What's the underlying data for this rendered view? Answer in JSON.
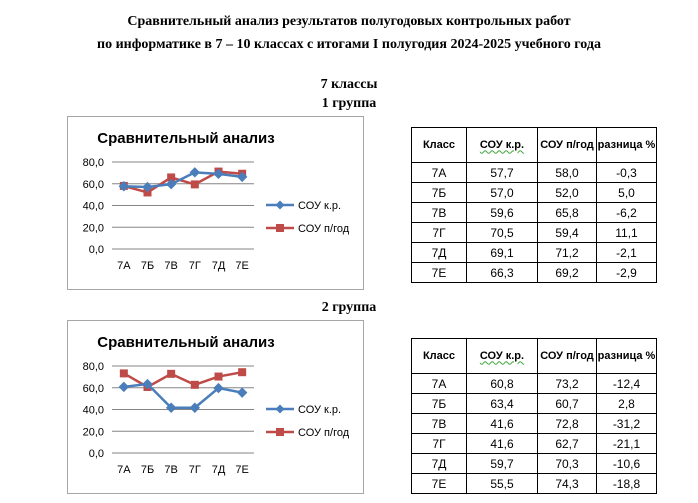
{
  "header": {
    "line1": "Сравнительный анализ результатов полугодовых контрольных работ",
    "line2": "по информатике в 7 – 10 классах с итогами I полугодия 2024-2025 учебного года"
  },
  "section": {
    "class_title": "7 классы",
    "group1_title": "1 группа",
    "group2_title": "2 группа"
  },
  "table_headers": {
    "klass": "Класс",
    "sou_kr": "СОУ к.р.",
    "sou_pg": "СОУ п/год",
    "diff": "разница %"
  },
  "chart_data": [
    {
      "type": "line",
      "title": "Сравнительный анализ",
      "categories": [
        "7А",
        "7Б",
        "7В",
        "7Г",
        "7Д",
        "7Е"
      ],
      "series": [
        {
          "name": "СОУ к.р.",
          "values": [
            57.7,
            57.0,
            59.6,
            70.5,
            69.1,
            66.3
          ],
          "color": "#4a7ebb",
          "marker": "diamond"
        },
        {
          "name": "СОУ п/год",
          "values": [
            58.0,
            52.0,
            65.8,
            59.4,
            71.2,
            69.2
          ],
          "color": "#be4b48",
          "marker": "square"
        }
      ],
      "ylim": [
        0,
        80
      ],
      "yticks": [
        "0,0",
        "20,0",
        "40,0",
        "60,0",
        "80,0"
      ],
      "grid": true,
      "legend": "right"
    },
    {
      "type": "line",
      "title": "Сравнительный анализ",
      "categories": [
        "7А",
        "7Б",
        "7В",
        "7Г",
        "7Д",
        "7Е"
      ],
      "series": [
        {
          "name": "СОУ к.р.",
          "values": [
            60.8,
            63.4,
            41.6,
            41.6,
            59.7,
            55.5
          ],
          "color": "#4a7ebb",
          "marker": "diamond"
        },
        {
          "name": "СОУ п/год",
          "values": [
            73.2,
            60.7,
            72.8,
            62.7,
            70.3,
            74.3
          ],
          "color": "#be4b48",
          "marker": "square"
        }
      ],
      "ylim": [
        0,
        80
      ],
      "yticks": [
        "0,0",
        "20,0",
        "40,0",
        "60,0",
        "80,0"
      ],
      "grid": true,
      "legend": "right"
    }
  ],
  "table1": [
    [
      "7А",
      "57,7",
      "58,0",
      "-0,3"
    ],
    [
      "7Б",
      "57,0",
      "52,0",
      "5,0"
    ],
    [
      "7В",
      "59,6",
      "65,8",
      "-6,2"
    ],
    [
      "7Г",
      "70,5",
      "59,4",
      "11,1"
    ],
    [
      "7Д",
      "69,1",
      "71,2",
      "-2,1"
    ],
    [
      "7Е",
      "66,3",
      "69,2",
      "-2,9"
    ]
  ],
  "table2": [
    [
      "7А",
      "60,8",
      "73,2",
      "-12,4"
    ],
    [
      "7Б",
      "63,4",
      "60,7",
      "2,8"
    ],
    [
      "7В",
      "41,6",
      "72,8",
      "-31,2"
    ],
    [
      "7Г",
      "41,6",
      "62,7",
      "-21,1"
    ],
    [
      "7Д",
      "59,7",
      "70,3",
      "-10,6"
    ],
    [
      "7Е",
      "55,5",
      "74,3",
      "-18,8"
    ]
  ]
}
